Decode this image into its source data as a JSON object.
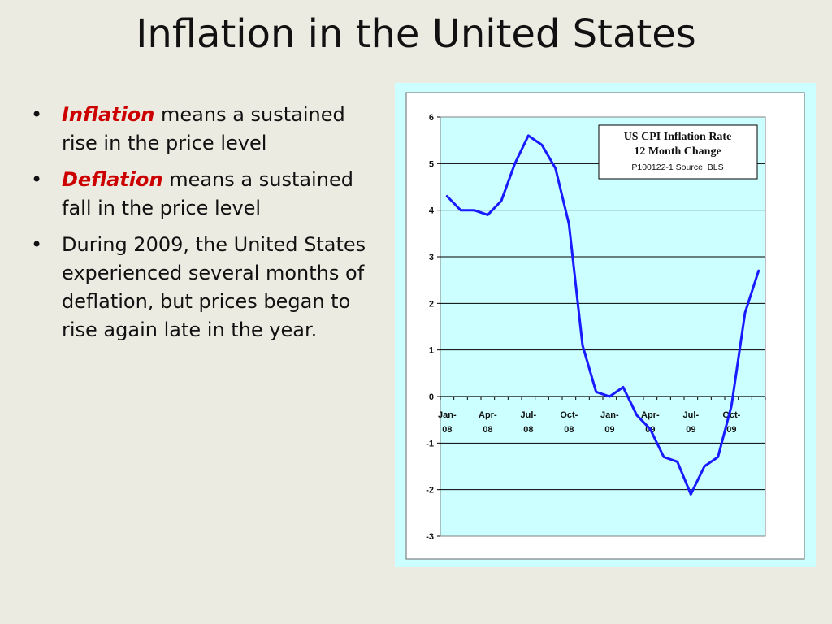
{
  "slide": {
    "title": "Inflation in the United States",
    "bullets": [
      {
        "term": "Inflation",
        "text": " means a sustained rise in the price level"
      },
      {
        "term": "Deflation",
        "text": " means a sustained fall in the price level"
      },
      {
        "term": "",
        "text": "During 2009, the United States experienced several months of deflation, but prices began to rise again late in the year."
      }
    ]
  },
  "chart_data": {
    "type": "line",
    "title": "US CPI Inflation Rate",
    "subtitle": "12 Month Change",
    "note": "P100122-1 Source: BLS",
    "xlabel": "",
    "ylabel": "",
    "ylim": [
      -3,
      6
    ],
    "yticks": [
      "6",
      "5",
      "4",
      "3",
      "2",
      "1",
      "0",
      "-1",
      "-2",
      "-3"
    ],
    "xtick_labels": [
      {
        "top": "Jan-",
        "bottom": "08"
      },
      {
        "top": "Apr-",
        "bottom": "08"
      },
      {
        "top": "Jul-",
        "bottom": "08"
      },
      {
        "top": "Oct-",
        "bottom": "08"
      },
      {
        "top": "Jan-",
        "bottom": "09"
      },
      {
        "top": "Apr-",
        "bottom": "09"
      },
      {
        "top": "Jul-",
        "bottom": "09"
      },
      {
        "top": "Oct-",
        "bottom": "09"
      }
    ],
    "grid": true,
    "legend": "top-right",
    "series": [
      {
        "color": "#1a1aff",
        "x": [
          "Jan-08",
          "Feb-08",
          "Mar-08",
          "Apr-08",
          "May-08",
          "Jun-08",
          "Jul-08",
          "Aug-08",
          "Sep-08",
          "Oct-08",
          "Nov-08",
          "Dec-08",
          "Jan-09",
          "Feb-09",
          "Mar-09",
          "Apr-09",
          "May-09",
          "Jun-09",
          "Jul-09",
          "Aug-09",
          "Sep-09",
          "Oct-09",
          "Nov-09",
          "Dec-09"
        ],
        "values": [
          4.3,
          4.0,
          4.0,
          3.9,
          4.2,
          5.0,
          5.6,
          5.4,
          4.9,
          3.7,
          1.1,
          0.1,
          0.0,
          0.2,
          -0.4,
          -0.7,
          -1.3,
          -1.4,
          -2.1,
          -1.5,
          -1.3,
          -0.2,
          1.8,
          2.7
        ]
      }
    ]
  }
}
